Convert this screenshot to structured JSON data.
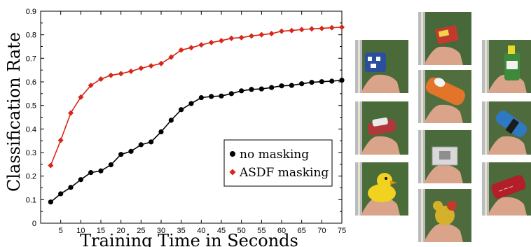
{
  "chart_data": {
    "type": "line",
    "title": "",
    "xlabel": "Training Time in Seconds",
    "ylabel": "Classification Rate",
    "xlim": [
      0,
      75
    ],
    "ylim": [
      0,
      0.9
    ],
    "xticks": [
      5,
      10,
      15,
      20,
      25,
      30,
      35,
      40,
      45,
      50,
      55,
      60,
      65,
      70,
      75
    ],
    "yticks": [
      0,
      0.1,
      0.2,
      0.3,
      0.4,
      0.5,
      0.6,
      0.7,
      0.8,
      0.9
    ],
    "grid": false,
    "legend_position": "bottom-right",
    "x": [
      2.5,
      5,
      7.5,
      10,
      12.5,
      15,
      17.5,
      20,
      22.5,
      25,
      27.5,
      30,
      32.5,
      35,
      37.5,
      40,
      42.5,
      45,
      47.5,
      50,
      52.5,
      55,
      57.5,
      60,
      62.5,
      65,
      67.5,
      70,
      72.5,
      75
    ],
    "series": [
      {
        "name": "no masking",
        "color": "#000000",
        "marker": "circle",
        "values": [
          0.09,
          0.125,
          0.152,
          0.185,
          0.215,
          0.222,
          0.248,
          0.292,
          0.305,
          0.333,
          0.345,
          0.388,
          0.437,
          0.482,
          0.508,
          0.533,
          0.538,
          0.54,
          0.55,
          0.562,
          0.568,
          0.57,
          0.576,
          0.583,
          0.585,
          0.592,
          0.598,
          0.601,
          0.603,
          0.607
        ]
      },
      {
        "name": "ASDF masking",
        "color": "#d62718",
        "marker": "diamond",
        "values": [
          0.245,
          0.352,
          0.468,
          0.535,
          0.585,
          0.612,
          0.628,
          0.635,
          0.645,
          0.658,
          0.668,
          0.678,
          0.705,
          0.735,
          0.745,
          0.757,
          0.767,
          0.775,
          0.785,
          0.788,
          0.795,
          0.8,
          0.805,
          0.815,
          0.818,
          0.822,
          0.825,
          0.827,
          0.83,
          0.832
        ]
      }
    ]
  },
  "thumbnails": [
    {
      "object": "blue patterned mug",
      "bg": "#4a6a3a",
      "obj_color": "#2a4f9e"
    },
    {
      "object": "red cardboard box",
      "bg": "#46683a",
      "obj_color": "#c23a2e"
    },
    {
      "object": "green bottle",
      "bg": "#4e6d3c",
      "obj_color": "#3f8a3a"
    },
    {
      "object": "orange container",
      "bg": "#516f3e",
      "obj_color": "#e3752a"
    },
    {
      "object": "toy car",
      "bg": "#4a6a3a",
      "obj_color": "#b2373a"
    },
    {
      "object": "blue bottle",
      "bg": "#4f6b3d",
      "obj_color": "#2d79c2"
    },
    {
      "object": "white box",
      "bg": "#4b6a3b",
      "obj_color": "#d9d9d9"
    },
    {
      "object": "rubber duck",
      "bg": "#4a6c39",
      "obj_color": "#f1d21f"
    },
    {
      "object": "red can",
      "bg": "#4c6a3a",
      "obj_color": "#b21f2a"
    },
    {
      "object": "teddy toy",
      "bg": "#4d6b3c",
      "obj_color": "#d5b02a"
    }
  ]
}
